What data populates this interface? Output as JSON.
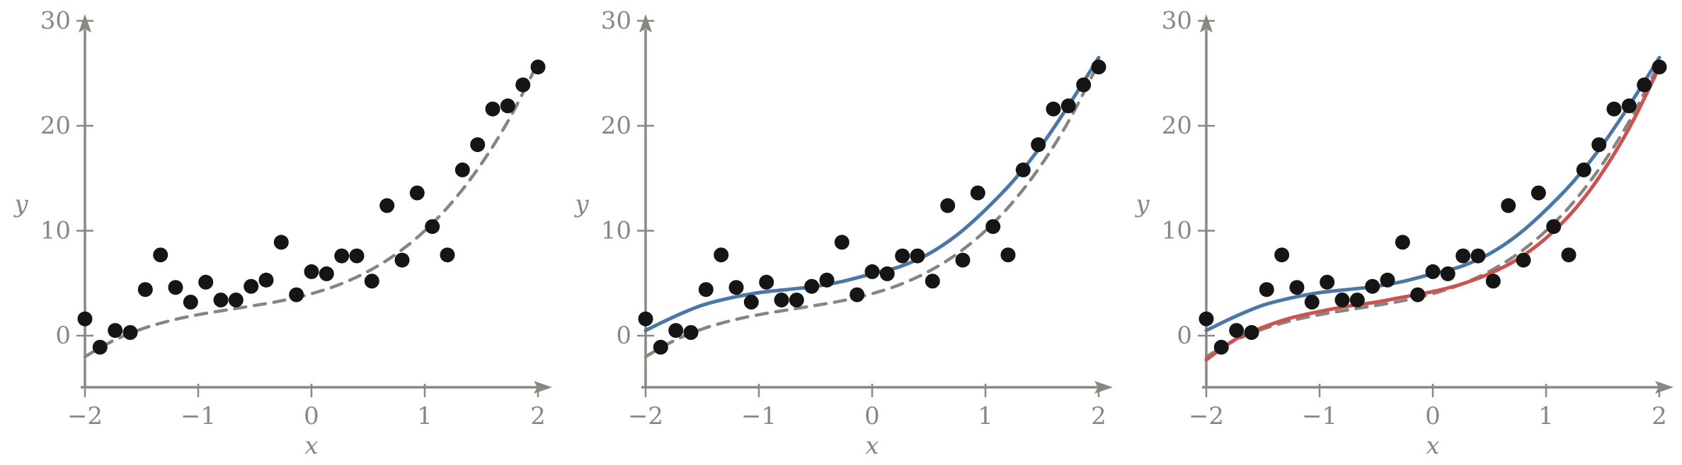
{
  "figure": {
    "description": "Three-panel scatter plot figure: data points with true function (dashed), plus fitted model curves",
    "colors": {
      "point": "#151515",
      "true_curve": "#8a847e",
      "fit_blue": "#4a78a6",
      "fit_red": "#cb5251",
      "axis": "#8c8680",
      "tick_label": "#8c8680"
    }
  },
  "chart_data": [
    {
      "type": "scatter",
      "title": "",
      "xlabel": "x",
      "ylabel": "y",
      "xlim": [
        -2,
        2
      ],
      "ylim": [
        0,
        30
      ],
      "grid": false,
      "legend": "none",
      "xticks": {
        "values": [
          -2,
          -1,
          0,
          1,
          2
        ],
        "labels": [
          "−2",
          "−1",
          "0",
          "1",
          "2"
        ]
      },
      "yticks": {
        "values": [
          0,
          10,
          20,
          30
        ],
        "labels": [
          "0",
          "10",
          "20",
          "30"
        ]
      },
      "points": {
        "x": [
          -2.0,
          -1.867,
          -1.733,
          -1.6,
          -1.467,
          -1.333,
          -1.2,
          -1.067,
          -0.933,
          -0.8,
          -0.667,
          -0.533,
          -0.4,
          -0.267,
          -0.133,
          0.0,
          0.133,
          0.267,
          0.4,
          0.533,
          0.667,
          0.8,
          0.933,
          1.067,
          1.2,
          1.333,
          1.467,
          1.6,
          1.733,
          1.867,
          2.0
        ],
        "y": [
          1.6,
          -1.1,
          0.5,
          0.3,
          4.4,
          7.7,
          4.6,
          3.2,
          5.1,
          3.4,
          3.4,
          4.7,
          5.3,
          8.9,
          3.9,
          6.1,
          5.9,
          7.6,
          7.6,
          5.2,
          12.4,
          7.2,
          13.6,
          10.4,
          7.7,
          15.8,
          18.2,
          21.6,
          21.9,
          23.9,
          25.6
        ]
      },
      "curves": [
        {
          "name": "true-function-dashed",
          "style": "dashed",
          "color_key": "true_curve",
          "x": [
            -2.0,
            -1.75,
            -1.5,
            -1.25,
            -1.0,
            -0.75,
            -0.5,
            -0.25,
            0.0,
            0.25,
            0.5,
            0.75,
            1.0,
            1.25,
            1.5,
            1.75,
            2.0
          ],
          "y": [
            -2.0,
            -0.48,
            0.63,
            1.42,
            2.0,
            2.45,
            2.88,
            3.36,
            4.0,
            4.89,
            6.13,
            7.8,
            10.0,
            12.83,
            16.38,
            20.73,
            26.0
          ]
        }
      ]
    },
    {
      "type": "scatter",
      "title": "",
      "xlabel": "x",
      "ylabel": "y",
      "xlim": [
        -2,
        2
      ],
      "ylim": [
        0,
        30
      ],
      "grid": false,
      "legend": "none",
      "xticks": {
        "values": [
          -2,
          -1,
          0,
          1,
          2
        ],
        "labels": [
          "−2",
          "−1",
          "0",
          "1",
          "2"
        ]
      },
      "yticks": {
        "values": [
          0,
          10,
          20,
          30
        ],
        "labels": [
          "0",
          "10",
          "20",
          "30"
        ]
      },
      "points": {
        "x": [
          -2.0,
          -1.867,
          -1.733,
          -1.6,
          -1.467,
          -1.333,
          -1.2,
          -1.067,
          -0.933,
          -0.8,
          -0.667,
          -0.533,
          -0.4,
          -0.267,
          -0.133,
          0.0,
          0.133,
          0.267,
          0.4,
          0.533,
          0.667,
          0.8,
          0.933,
          1.067,
          1.2,
          1.333,
          1.467,
          1.6,
          1.733,
          1.867,
          2.0
        ],
        "y": [
          1.6,
          -1.1,
          0.5,
          0.3,
          4.4,
          7.7,
          4.6,
          3.2,
          5.1,
          3.4,
          3.4,
          4.7,
          5.3,
          8.9,
          3.9,
          6.1,
          5.9,
          7.6,
          7.6,
          5.2,
          12.4,
          7.2,
          13.6,
          10.4,
          7.7,
          15.8,
          18.2,
          21.6,
          21.9,
          23.9,
          25.6
        ]
      },
      "curves": [
        {
          "name": "true-function-dashed",
          "style": "dashed",
          "color_key": "true_curve",
          "x": [
            -2.0,
            -1.75,
            -1.5,
            -1.25,
            -1.0,
            -0.75,
            -0.5,
            -0.25,
            0.0,
            0.25,
            0.5,
            0.75,
            1.0,
            1.25,
            1.5,
            1.75,
            2.0
          ],
          "y": [
            -2.0,
            -0.48,
            0.63,
            1.42,
            2.0,
            2.45,
            2.88,
            3.36,
            4.0,
            4.89,
            6.13,
            7.8,
            10.0,
            12.83,
            16.38,
            20.73,
            26.0
          ]
        },
        {
          "name": "fitted-model-blue",
          "style": "solid",
          "color_key": "fit_blue",
          "x": [
            -2.0,
            -1.75,
            -1.5,
            -1.25,
            -1.0,
            -0.75,
            -0.5,
            -0.25,
            0.0,
            0.25,
            0.5,
            0.75,
            1.0,
            1.25,
            1.5,
            1.75,
            2.0
          ],
          "y": [
            0.5,
            1.8,
            2.9,
            3.6,
            4.1,
            4.4,
            4.7,
            5.2,
            5.9,
            6.6,
            7.8,
            9.6,
            12.0,
            14.8,
            18.2,
            22.2,
            26.5
          ]
        }
      ]
    },
    {
      "type": "scatter",
      "title": "",
      "xlabel": "x",
      "ylabel": "y",
      "xlim": [
        -2,
        2
      ],
      "ylim": [
        0,
        30
      ],
      "grid": false,
      "legend": "none",
      "xticks": {
        "values": [
          -2,
          -1,
          0,
          1,
          2
        ],
        "labels": [
          "−2",
          "−1",
          "0",
          "1",
          "2"
        ]
      },
      "yticks": {
        "values": [
          0,
          10,
          20,
          30
        ],
        "labels": [
          "0",
          "10",
          "20",
          "30"
        ]
      },
      "points": {
        "x": [
          -2.0,
          -1.867,
          -1.733,
          -1.6,
          -1.467,
          -1.333,
          -1.2,
          -1.067,
          -0.933,
          -0.8,
          -0.667,
          -0.533,
          -0.4,
          -0.267,
          -0.133,
          0.0,
          0.133,
          0.267,
          0.4,
          0.533,
          0.667,
          0.8,
          0.933,
          1.067,
          1.2,
          1.333,
          1.467,
          1.6,
          1.733,
          1.867,
          2.0
        ],
        "y": [
          1.6,
          -1.1,
          0.5,
          0.3,
          4.4,
          7.7,
          4.6,
          3.2,
          5.1,
          3.4,
          3.4,
          4.7,
          5.3,
          8.9,
          3.9,
          6.1,
          5.9,
          7.6,
          7.6,
          5.2,
          12.4,
          7.2,
          13.6,
          10.4,
          7.7,
          15.8,
          18.2,
          21.6,
          21.9,
          23.9,
          25.6
        ]
      },
      "curves": [
        {
          "name": "true-function-dashed",
          "style": "dashed",
          "color_key": "true_curve",
          "x": [
            -2.0,
            -1.75,
            -1.5,
            -1.25,
            -1.0,
            -0.75,
            -0.5,
            -0.25,
            0.0,
            0.25,
            0.5,
            0.75,
            1.0,
            1.25,
            1.5,
            1.75,
            2.0
          ],
          "y": [
            -2.0,
            -0.48,
            0.63,
            1.42,
            2.0,
            2.45,
            2.88,
            3.36,
            4.0,
            4.89,
            6.13,
            7.8,
            10.0,
            12.83,
            16.38,
            20.73,
            26.0
          ]
        },
        {
          "name": "fitted-model-blue",
          "style": "solid",
          "color_key": "fit_blue",
          "x": [
            -2.0,
            -1.75,
            -1.5,
            -1.25,
            -1.0,
            -0.75,
            -0.5,
            -0.25,
            0.0,
            0.25,
            0.5,
            0.75,
            1.0,
            1.25,
            1.5,
            1.75,
            2.0
          ],
          "y": [
            0.5,
            1.8,
            2.9,
            3.6,
            4.1,
            4.4,
            4.7,
            5.2,
            5.9,
            6.6,
            7.8,
            9.6,
            12.0,
            14.8,
            18.2,
            22.2,
            26.5
          ]
        },
        {
          "name": "fitted-model-red",
          "style": "solid",
          "color_key": "fit_red",
          "x": [
            -2.0,
            -1.75,
            -1.5,
            -1.25,
            -1.0,
            -0.75,
            -0.5,
            -0.25,
            0.0,
            0.25,
            0.5,
            0.75,
            1.0,
            1.25,
            1.5,
            1.75,
            2.0
          ],
          "y": [
            -2.3,
            -0.4,
            0.8,
            1.7,
            2.3,
            2.8,
            3.2,
            3.7,
            4.2,
            4.9,
            5.9,
            7.3,
            9.3,
            12.0,
            15.6,
            20.1,
            25.6
          ]
        }
      ]
    }
  ]
}
